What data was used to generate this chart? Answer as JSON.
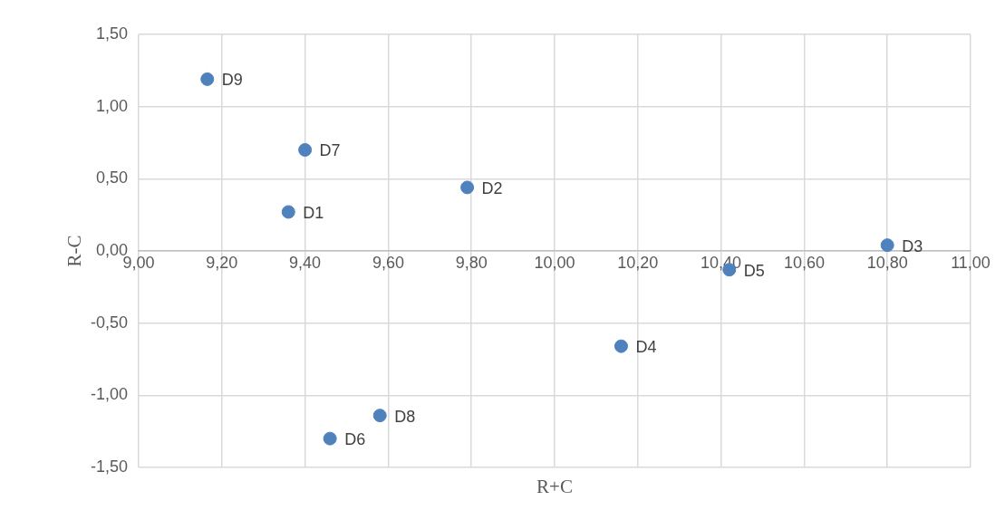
{
  "chart_data": {
    "type": "scatter",
    "xlabel": "R+C",
    "ylabel": "R-C",
    "x": [
      9.36,
      9.79,
      10.8,
      10.16,
      10.42,
      9.46,
      9.4,
      9.58,
      9.165
    ],
    "values": [
      0.27,
      0.44,
      0.04,
      -0.66,
      -0.13,
      -1.3,
      0.7,
      -1.14,
      1.19
    ],
    "value_labels": [
      "D1",
      "D2",
      "D3",
      "D4",
      "D5",
      "D6",
      "D7",
      "D8",
      "D9"
    ],
    "color": "#4f81bd",
    "marker": "circle",
    "grid": true,
    "legend": false,
    "xlim": [
      9,
      11
    ],
    "xticks": [
      {
        "value": 9,
        "label": "9,00"
      },
      {
        "value": 9.2,
        "label": "9,20"
      },
      {
        "value": 9.4,
        "label": "9,40"
      },
      {
        "value": 9.6,
        "label": "9,60"
      },
      {
        "value": 9.8,
        "label": "9,80"
      },
      {
        "value": 10,
        "label": "10,00"
      },
      {
        "value": 10.2,
        "label": "10,20"
      },
      {
        "value": 10.4,
        "label": "10,40"
      },
      {
        "value": 10.6,
        "label": "10,60"
      },
      {
        "value": 10.8,
        "label": "10,80"
      },
      {
        "value": 11,
        "label": "11,00"
      }
    ],
    "ylim": [
      -1.5,
      1.5
    ],
    "yticks": [
      {
        "value": -1.5,
        "label": "-1,50"
      },
      {
        "value": -1,
        "label": "-1,00"
      },
      {
        "value": -0.5,
        "label": "-0,50"
      },
      {
        "value": 0,
        "label": "0,00"
      },
      {
        "value": 0.5,
        "label": "0,50"
      },
      {
        "value": 1,
        "label": "1,00"
      },
      {
        "value": 1.5,
        "label": "1,50"
      }
    ]
  }
}
